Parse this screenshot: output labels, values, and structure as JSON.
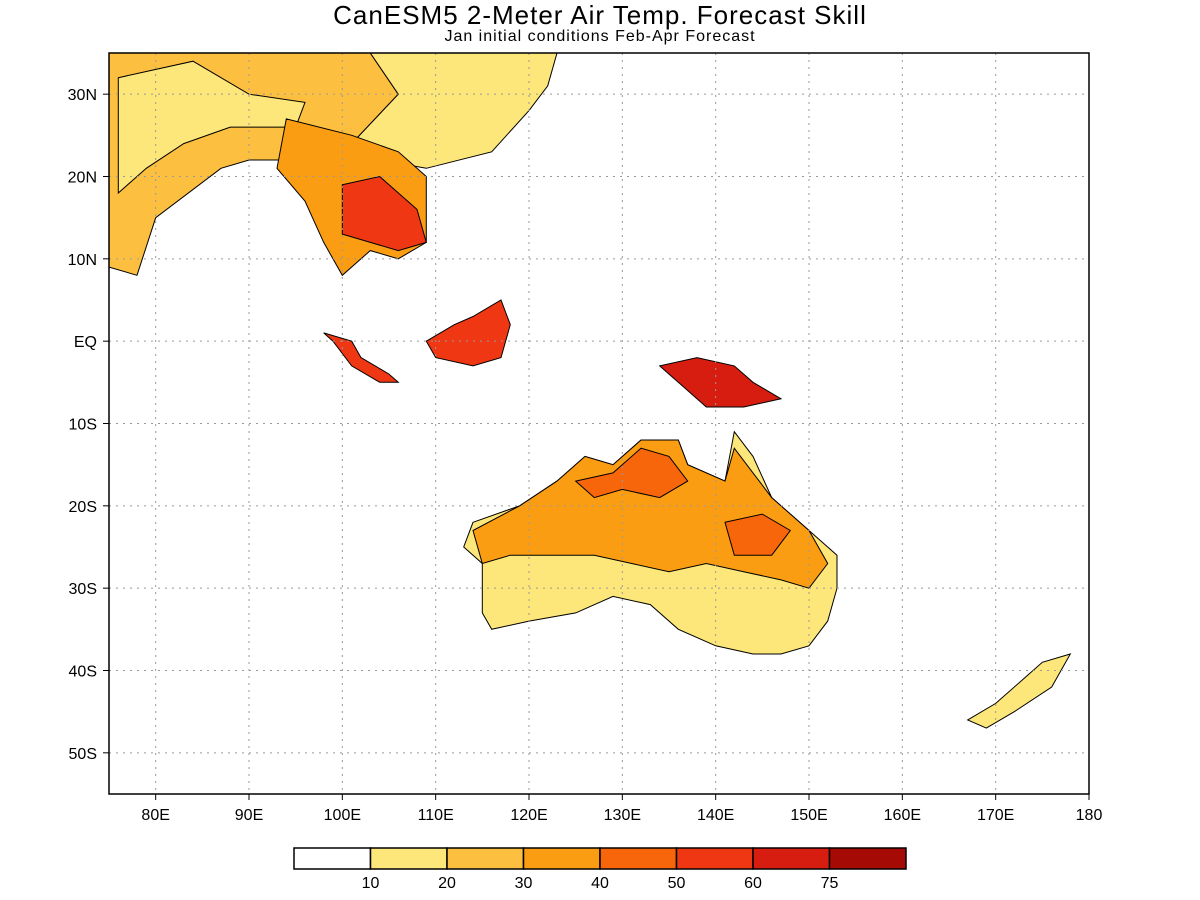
{
  "title": "CanESM5 2-Meter Air Temp. Forecast Skill",
  "subtitle": "Jan initial conditions  Feb-Apr Forecast",
  "map": {
    "lon_range": [
      75,
      180
    ],
    "lat_range": [
      -55,
      35
    ],
    "grid": true,
    "x_ticks": [
      {
        "lon": 80,
        "label": "80E"
      },
      {
        "lon": 90,
        "label": "90E"
      },
      {
        "lon": 100,
        "label": "100E"
      },
      {
        "lon": 110,
        "label": "110E"
      },
      {
        "lon": 120,
        "label": "120E"
      },
      {
        "lon": 130,
        "label": "130E"
      },
      {
        "lon": 140,
        "label": "140E"
      },
      {
        "lon": 150,
        "label": "150E"
      },
      {
        "lon": 160,
        "label": "160E"
      },
      {
        "lon": 170,
        "label": "170E"
      },
      {
        "lon": 180,
        "label": "180"
      }
    ],
    "y_ticks": [
      {
        "lat": 30,
        "label": "30N"
      },
      {
        "lat": 20,
        "label": "20N"
      },
      {
        "lat": 10,
        "label": "10N"
      },
      {
        "lat": 0,
        "label": "EQ"
      },
      {
        "lat": -10,
        "label": "10S"
      },
      {
        "lat": -20,
        "label": "20S"
      },
      {
        "lat": -30,
        "label": "30S"
      },
      {
        "lat": -40,
        "label": "40S"
      },
      {
        "lat": -50,
        "label": "50S"
      }
    ]
  },
  "colorbar": {
    "colors": [
      "#ffffff",
      "#fde67a",
      "#fcbf3f",
      "#fa9d12",
      "#f8660c",
      "#ef3713",
      "#d61d10",
      "#a50a05"
    ],
    "labels": [
      "10",
      "20",
      "30",
      "40",
      "50",
      "60",
      "75"
    ]
  },
  "regions": [
    {
      "name": "south-asia",
      "level": 2,
      "points": [
        [
          75,
          35
        ],
        [
          103,
          35
        ],
        [
          106,
          30
        ],
        [
          101,
          24
        ],
        [
          94,
          22
        ],
        [
          90,
          22
        ],
        [
          87,
          21
        ],
        [
          80,
          15
        ],
        [
          78,
          8
        ],
        [
          75,
          9
        ]
      ]
    },
    {
      "name": "south-asia-low",
      "level": 1,
      "points": [
        [
          76,
          32
        ],
        [
          84,
          34
        ],
        [
          90,
          30
        ],
        [
          96,
          29
        ],
        [
          95,
          26
        ],
        [
          88,
          26
        ],
        [
          83,
          24
        ],
        [
          79,
          21
        ],
        [
          76,
          18
        ]
      ]
    },
    {
      "name": "china",
      "level": 1,
      "points": [
        [
          103,
          35
        ],
        [
          123,
          35
        ],
        [
          122,
          31
        ],
        [
          120,
          28
        ],
        [
          116,
          23
        ],
        [
          109,
          21
        ],
        [
          104,
          22
        ],
        [
          101,
          24
        ],
        [
          106,
          30
        ]
      ]
    },
    {
      "name": "mainland-sea",
      "level": 3,
      "points": [
        [
          94,
          27
        ],
        [
          101,
          25
        ],
        [
          106,
          23
        ],
        [
          109,
          20
        ],
        [
          109,
          12
        ],
        [
          106,
          10
        ],
        [
          103,
          11
        ],
        [
          100,
          8
        ],
        [
          98,
          12
        ],
        [
          96,
          17
        ],
        [
          93,
          21
        ]
      ]
    },
    {
      "name": "mainland-sea-high",
      "level": 5,
      "points": [
        [
          100,
          19
        ],
        [
          104,
          20
        ],
        [
          108,
          16
        ],
        [
          109,
          12
        ],
        [
          106,
          11
        ],
        [
          103,
          12
        ],
        [
          100,
          13
        ]
      ]
    },
    {
      "name": "sumatra",
      "level": 5,
      "points": [
        [
          102,
          -2
        ],
        [
          105,
          -4
        ],
        [
          106,
          -5
        ],
        [
          104,
          -5
        ],
        [
          101,
          -3
        ],
        [
          99,
          0
        ],
        [
          98,
          1
        ],
        [
          101,
          0
        ]
      ]
    },
    {
      "name": "borneo",
      "level": 5,
      "points": [
        [
          109,
          0
        ],
        [
          112,
          2
        ],
        [
          114,
          3
        ],
        [
          117,
          5
        ],
        [
          118,
          2
        ],
        [
          117,
          -2
        ],
        [
          114,
          -3
        ],
        [
          110,
          -2
        ]
      ]
    },
    {
      "name": "new-guinea",
      "level": 6,
      "points": [
        [
          134,
          -3
        ],
        [
          138,
          -2
        ],
        [
          142,
          -3
        ],
        [
          144,
          -5
        ],
        [
          147,
          -7
        ],
        [
          143,
          -8
        ],
        [
          139,
          -8
        ],
        [
          136,
          -5
        ]
      ]
    },
    {
      "name": "australia",
      "level": 1,
      "points": [
        [
          114,
          -22
        ],
        [
          119,
          -20
        ],
        [
          123,
          -17
        ],
        [
          126,
          -14
        ],
        [
          129,
          -15
        ],
        [
          132,
          -12
        ],
        [
          136,
          -12
        ],
        [
          137,
          -15
        ],
        [
          141,
          -17
        ],
        [
          142,
          -11
        ],
        [
          144,
          -14
        ],
        [
          146,
          -19
        ],
        [
          150,
          -23
        ],
        [
          153,
          -26
        ],
        [
          153,
          -30
        ],
        [
          152,
          -34
        ],
        [
          150,
          -37
        ],
        [
          147,
          -38
        ],
        [
          144,
          -38
        ],
        [
          140,
          -37
        ],
        [
          136,
          -35
        ],
        [
          133,
          -32
        ],
        [
          129,
          -31
        ],
        [
          125,
          -33
        ],
        [
          120,
          -34
        ],
        [
          116,
          -35
        ],
        [
          115,
          -33
        ],
        [
          115,
          -27
        ],
        [
          113,
          -25
        ]
      ]
    },
    {
      "name": "australia-north",
      "level": 3,
      "points": [
        [
          114,
          -23
        ],
        [
          119,
          -20
        ],
        [
          123,
          -17
        ],
        [
          126,
          -14
        ],
        [
          129,
          -15
        ],
        [
          132,
          -12
        ],
        [
          136,
          -12
        ],
        [
          137,
          -15
        ],
        [
          141,
          -17
        ],
        [
          142,
          -13
        ],
        [
          144,
          -16
        ],
        [
          146,
          -19
        ],
        [
          150,
          -23
        ],
        [
          152,
          -27
        ],
        [
          150,
          -30
        ],
        [
          147,
          -29
        ],
        [
          143,
          -28
        ],
        [
          139,
          -27
        ],
        [
          135,
          -28
        ],
        [
          131,
          -27
        ],
        [
          127,
          -26
        ],
        [
          122,
          -26
        ],
        [
          118,
          -26
        ],
        [
          115,
          -27
        ]
      ]
    },
    {
      "name": "australia-north-high",
      "level": 4,
      "points": [
        [
          125,
          -17
        ],
        [
          129,
          -16
        ],
        [
          132,
          -13
        ],
        [
          135,
          -14
        ],
        [
          137,
          -17
        ],
        [
          134,
          -19
        ],
        [
          130,
          -18
        ],
        [
          127,
          -19
        ]
      ]
    },
    {
      "name": "australia-northeast",
      "level": 4,
      "points": [
        [
          141,
          -22
        ],
        [
          145,
          -21
        ],
        [
          148,
          -23
        ],
        [
          146,
          -26
        ],
        [
          142,
          -26
        ]
      ]
    },
    {
      "name": "new-zealand",
      "level": 1,
      "points": [
        [
          167,
          -46
        ],
        [
          170,
          -44
        ],
        [
          173,
          -41
        ],
        [
          175,
          -39
        ],
        [
          178,
          -38
        ],
        [
          176,
          -42
        ],
        [
          172,
          -45
        ],
        [
          169,
          -47
        ]
      ]
    }
  ]
}
